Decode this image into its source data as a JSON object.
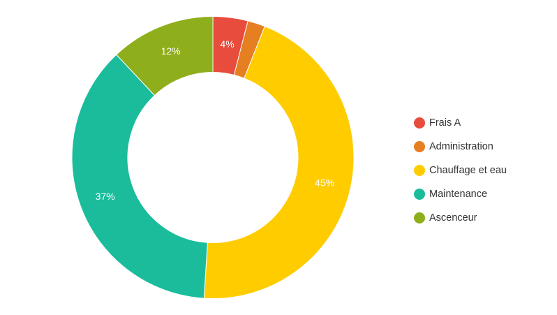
{
  "chart_data": {
    "type": "pie",
    "variant": "donut",
    "categories": [
      "Frais A",
      "Administration",
      "Chauffage et eau",
      "Maintenance",
      "Ascenceur"
    ],
    "values": [
      4,
      2,
      45,
      37,
      12
    ],
    "data_labels": [
      "4%",
      "",
      "45%",
      "37%",
      "12%"
    ],
    "colors": [
      "#e74c3c",
      "#e67e22",
      "#ffcc00",
      "#1abc9c",
      "#8fae1b"
    ],
    "unit": "%",
    "title": "",
    "legend": {
      "position": "right",
      "items": [
        {
          "label": "Frais A",
          "color": "#e74c3c"
        },
        {
          "label": "Administration",
          "color": "#e67e22"
        },
        {
          "label": "Chauffage et eau",
          "color": "#ffcc00"
        },
        {
          "label": "Maintenance",
          "color": "#1abc9c"
        },
        {
          "label": "Ascenceur",
          "color": "#8fae1b"
        }
      ]
    }
  }
}
